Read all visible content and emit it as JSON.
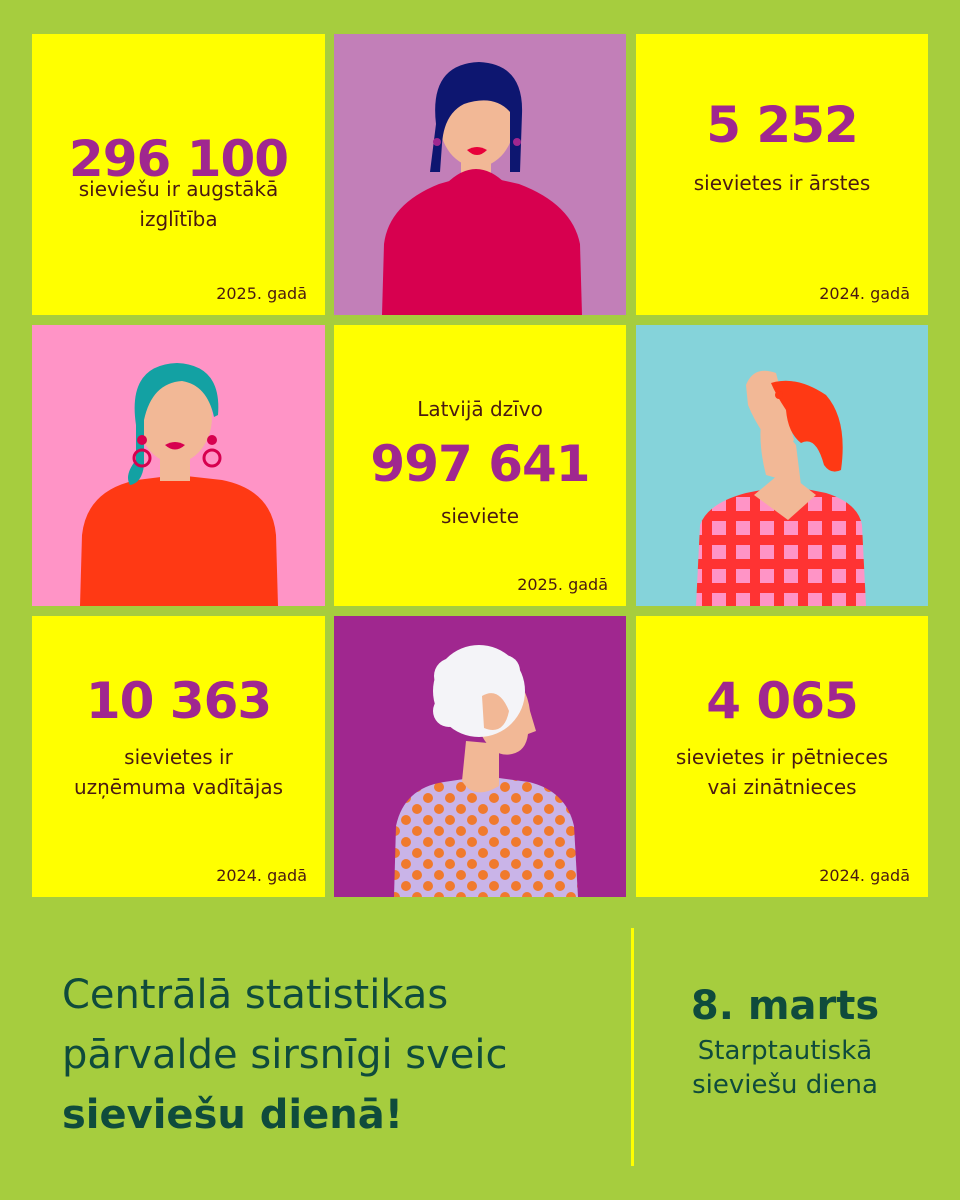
{
  "colors": {
    "background": "#a6cd3e",
    "tile_yellow": "#ffff00",
    "number_purple": "#a0278f",
    "footer_text": "#0f4b3c"
  },
  "tiles": {
    "higher_education": {
      "number": "296 100",
      "desc_line1": "sieviešu ir augstākā",
      "desc_line2": "izglītība",
      "year": "2025. gadā"
    },
    "doctors": {
      "number": "5 252",
      "desc_line1": "sievietes ir ārstes",
      "year": "2024. gadā"
    },
    "population": {
      "lead": "Latvijā dzīvo",
      "number": "997 641",
      "desc_line1": "sieviete",
      "year": "2025. gadā"
    },
    "company_heads": {
      "number": "10 363",
      "desc_line1": "sievietes ir",
      "desc_line2": "uzņēmuma vadītājas",
      "year": "2024. gadā"
    },
    "researchers": {
      "number": "4 065",
      "desc_line1": "sievietes ir pētnieces",
      "desc_line2": "vai zinātnieces",
      "year": "2024. gadā"
    }
  },
  "portraits": {
    "woman_dark_hair": "woman-dark-hair-illustration",
    "woman_teal_hair": "woman-teal-hair-illustration",
    "woman_red_hair_profile": "woman-red-hair-profile-illustration",
    "woman_white_hair_profile": "woman-white-hair-profile-illustration"
  },
  "footer": {
    "message_line1": "Centrālā statistikas",
    "message_line2": "pārvalde sirsnīgi sveic",
    "message_bold": "sieviešu dienā!",
    "date": "8. marts",
    "holiday_line1": "Starptautiskā",
    "holiday_line2": "sieviešu diena"
  }
}
